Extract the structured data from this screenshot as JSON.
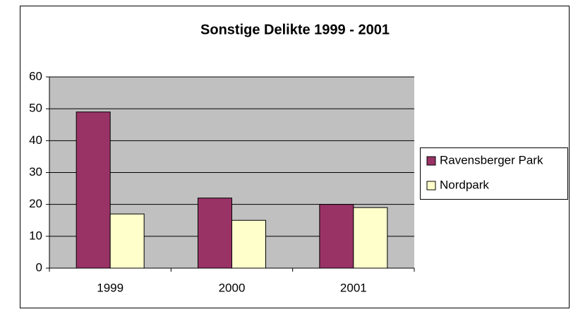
{
  "chart_data": {
    "type": "bar",
    "title": "Sonstige Delikte 1999 - 2001",
    "categories": [
      "1999",
      "2000",
      "2001"
    ],
    "series": [
      {
        "name": "Ravensberger Park",
        "color": "#993366",
        "values": [
          49,
          22,
          20
        ]
      },
      {
        "name": "Nordpark",
        "color": "#ffffcc",
        "values": [
          17,
          15,
          19
        ]
      }
    ],
    "ylim": [
      0,
      60
    ],
    "yticks": [
      0,
      10,
      20,
      30,
      40,
      50,
      60
    ],
    "grid": true,
    "legend": "right"
  }
}
